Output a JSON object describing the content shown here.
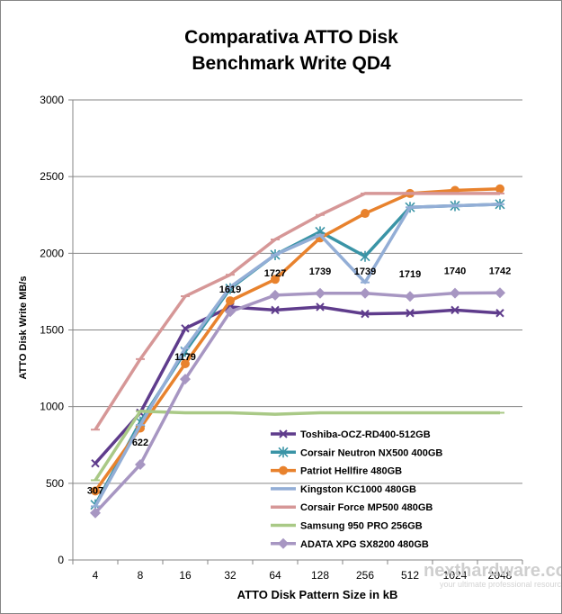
{
  "chart_data": {
    "type": "line",
    "title_lines": [
      "Comparativa ATTO Disk",
      "Benchmark Write QD4"
    ],
    "xlabel": "ATTO Disk Pattern Size in kB",
    "ylabel": "ATTO Disk Write MB/s",
    "categories": [
      "4",
      "8",
      "16",
      "32",
      "64",
      "128",
      "256",
      "512",
      "1024",
      "2048"
    ],
    "ylim": [
      0,
      3000
    ],
    "yticks": [
      "0",
      "500",
      "1000",
      "1500",
      "2000",
      "2500",
      "3000"
    ],
    "grid": true,
    "legend_position": "bottom-right, inside plot",
    "series": [
      {
        "name": "Toshiba-OCZ-RD400-512GB",
        "color": "#5f3c8c",
        "marker": "x",
        "values": [
          630,
          960,
          1510,
          1650,
          1630,
          1650,
          1605,
          1610,
          1630,
          1610
        ]
      },
      {
        "name": "Corsair Neutron NX500 400GB",
        "color": "#3a94a6",
        "marker": "star",
        "values": [
          360,
          900,
          1360,
          1770,
          1990,
          2140,
          1980,
          2300,
          2310,
          2320
        ]
      },
      {
        "name": "Patriot Hellfire 480GB",
        "color": "#e8822d",
        "marker": "circle",
        "values": [
          450,
          860,
          1280,
          1690,
          1830,
          2100,
          2260,
          2390,
          2410,
          2420
        ]
      },
      {
        "name": "Kingston KC1000 480GB",
        "color": "#93aed6",
        "marker": "dash",
        "values": [
          350,
          880,
          1380,
          1780,
          1990,
          2120,
          1810,
          2300,
          2310,
          2320
        ]
      },
      {
        "name": "Corsair Force MP500 480GB",
        "color": "#d69797",
        "marker": "dash",
        "values": [
          850,
          1310,
          1720,
          1860,
          2090,
          2250,
          2390,
          2390,
          2390,
          2390
        ]
      },
      {
        "name": "Samsung 950 PRO 256GB",
        "color": "#a9c986",
        "marker": "dash",
        "values": [
          520,
          970,
          960,
          960,
          950,
          960,
          960,
          960,
          960,
          960
        ]
      },
      {
        "name": "ADATA XPG SX8200 480GB",
        "color": "#a796c2",
        "marker": "diamond",
        "values": [
          307,
          622,
          1179,
          1619,
          1727,
          1739,
          1739,
          1719,
          1740,
          1742
        ],
        "data_labels": [
          "307",
          "622",
          "1179",
          "1619",
          "1727",
          "1739",
          "1739",
          "1719",
          "1740",
          "1742"
        ]
      }
    ]
  },
  "watermark": {
    "brand": "nexthardware.com",
    "tagline": "your ultimate professional resource"
  }
}
